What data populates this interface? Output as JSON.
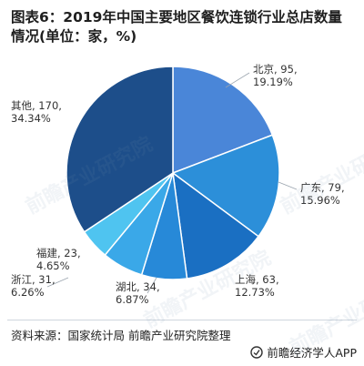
{
  "title": "图表6：2019年中国主要地区餐饮连锁行业总店数量情况(单位：家，%)",
  "source": "资料来源：国家统计局 前瞻产业研究院整理",
  "brand": "前瞻经济学人APP",
  "watermark_text": "前瞻产业研究院",
  "chart_data": {
    "type": "pie",
    "title": "",
    "slices": [
      {
        "name": "北京",
        "value": 95,
        "percent": "19.19%",
        "color": "#4a86d8"
      },
      {
        "name": "广东",
        "value": 79,
        "percent": "15.96%",
        "color": "#2c8fd9"
      },
      {
        "name": "上海",
        "value": 63,
        "percent": "12.73%",
        "color": "#1a6fc2"
      },
      {
        "name": "湖北",
        "value": 34,
        "percent": "6.87%",
        "color": "#2789d8"
      },
      {
        "name": "浙江",
        "value": 31,
        "percent": "6.26%",
        "color": "#3aa8e8"
      },
      {
        "name": "福建",
        "value": 23,
        "percent": "4.65%",
        "color": "#4fc4f0"
      },
      {
        "name": "其他",
        "value": 170,
        "percent": "34.34%",
        "color": "#1d4e8a"
      }
    ]
  }
}
